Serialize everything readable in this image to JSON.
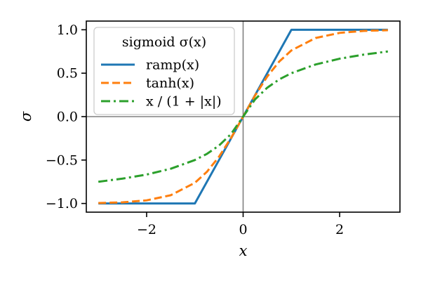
{
  "chart_data": {
    "type": "line",
    "xlabel": "x",
    "ylabel": "σ",
    "xlim": [
      -3.25,
      3.25
    ],
    "ylim": [
      -1.1,
      1.1
    ],
    "xticks": [
      -2,
      0,
      2
    ],
    "xtick_labels": [
      "−2",
      "0",
      "2"
    ],
    "yticks": [
      -1.0,
      -0.5,
      0.0,
      0.5,
      1.0
    ],
    "ytick_labels": [
      "−1.0",
      "−0.5",
      "0.0",
      "0.5",
      "1.0"
    ],
    "reference_lines": {
      "x": 0,
      "y": 0,
      "color": "#808080"
    },
    "grid": false,
    "legend": {
      "title": "sigmoid σ(x)",
      "placement": "top-left",
      "entries": [
        "ramp(x)",
        "tanh(x)",
        "x / (1 + |x|)"
      ]
    },
    "series": [
      {
        "name": "ramp(x)",
        "color": "#1f77b4",
        "style": "solid",
        "x": [
          -3.0,
          -2.5,
          -2.0,
          -1.5,
          -1.0,
          -0.5,
          0.0,
          0.5,
          1.0,
          1.5,
          2.0,
          2.5,
          3.0
        ],
        "y": [
          -1.0,
          -1.0,
          -1.0,
          -1.0,
          -1.0,
          -0.5,
          0.0,
          0.5,
          1.0,
          1.0,
          1.0,
          1.0,
          1.0
        ]
      },
      {
        "name": "tanh(x)",
        "color": "#ff7f0e",
        "style": "dashed",
        "x": [
          -3.0,
          -2.5,
          -2.0,
          -1.5,
          -1.0,
          -0.75,
          -0.5,
          -0.25,
          0.0,
          0.25,
          0.5,
          0.75,
          1.0,
          1.5,
          2.0,
          2.5,
          3.0
        ],
        "y": [
          -0.995,
          -0.987,
          -0.964,
          -0.905,
          -0.762,
          -0.635,
          -0.462,
          -0.245,
          0.0,
          0.245,
          0.462,
          0.635,
          0.762,
          0.905,
          0.964,
          0.987,
          0.995
        ]
      },
      {
        "name": "x / (1 + |x|)",
        "color": "#2ca02c",
        "style": "dashdot",
        "x": [
          -3.0,
          -2.5,
          -2.0,
          -1.5,
          -1.0,
          -0.75,
          -0.5,
          -0.25,
          0.0,
          0.25,
          0.5,
          0.75,
          1.0,
          1.5,
          2.0,
          2.5,
          3.0
        ],
        "y": [
          -0.75,
          -0.714,
          -0.667,
          -0.6,
          -0.5,
          -0.429,
          -0.333,
          -0.2,
          0.0,
          0.2,
          0.333,
          0.429,
          0.5,
          0.6,
          0.667,
          0.714,
          0.75
        ]
      }
    ]
  }
}
